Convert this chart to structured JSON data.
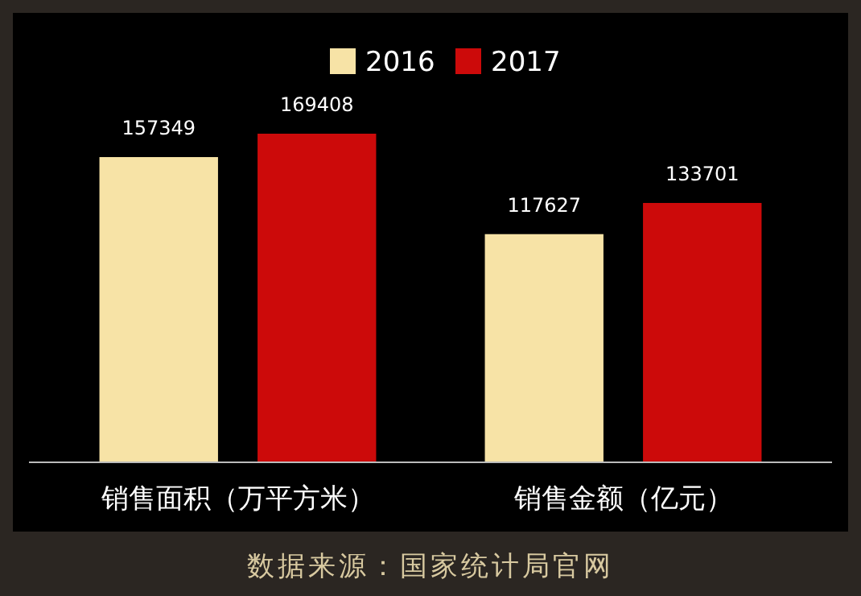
{
  "chart_data": {
    "type": "bar",
    "categories": [
      "销售面积（万平方米）",
      "销售金额（亿元）"
    ],
    "series": [
      {
        "name": "2016",
        "color": "#f7e3a6",
        "values": [
          157349,
          117627
        ]
      },
      {
        "name": "2017",
        "color": "#cc0a0a",
        "values": [
          169408,
          133701
        ]
      }
    ],
    "data_labels": true,
    "legend": "top",
    "grid": false,
    "annotations": [
      "数据来源：国家统计局官网"
    ]
  }
}
